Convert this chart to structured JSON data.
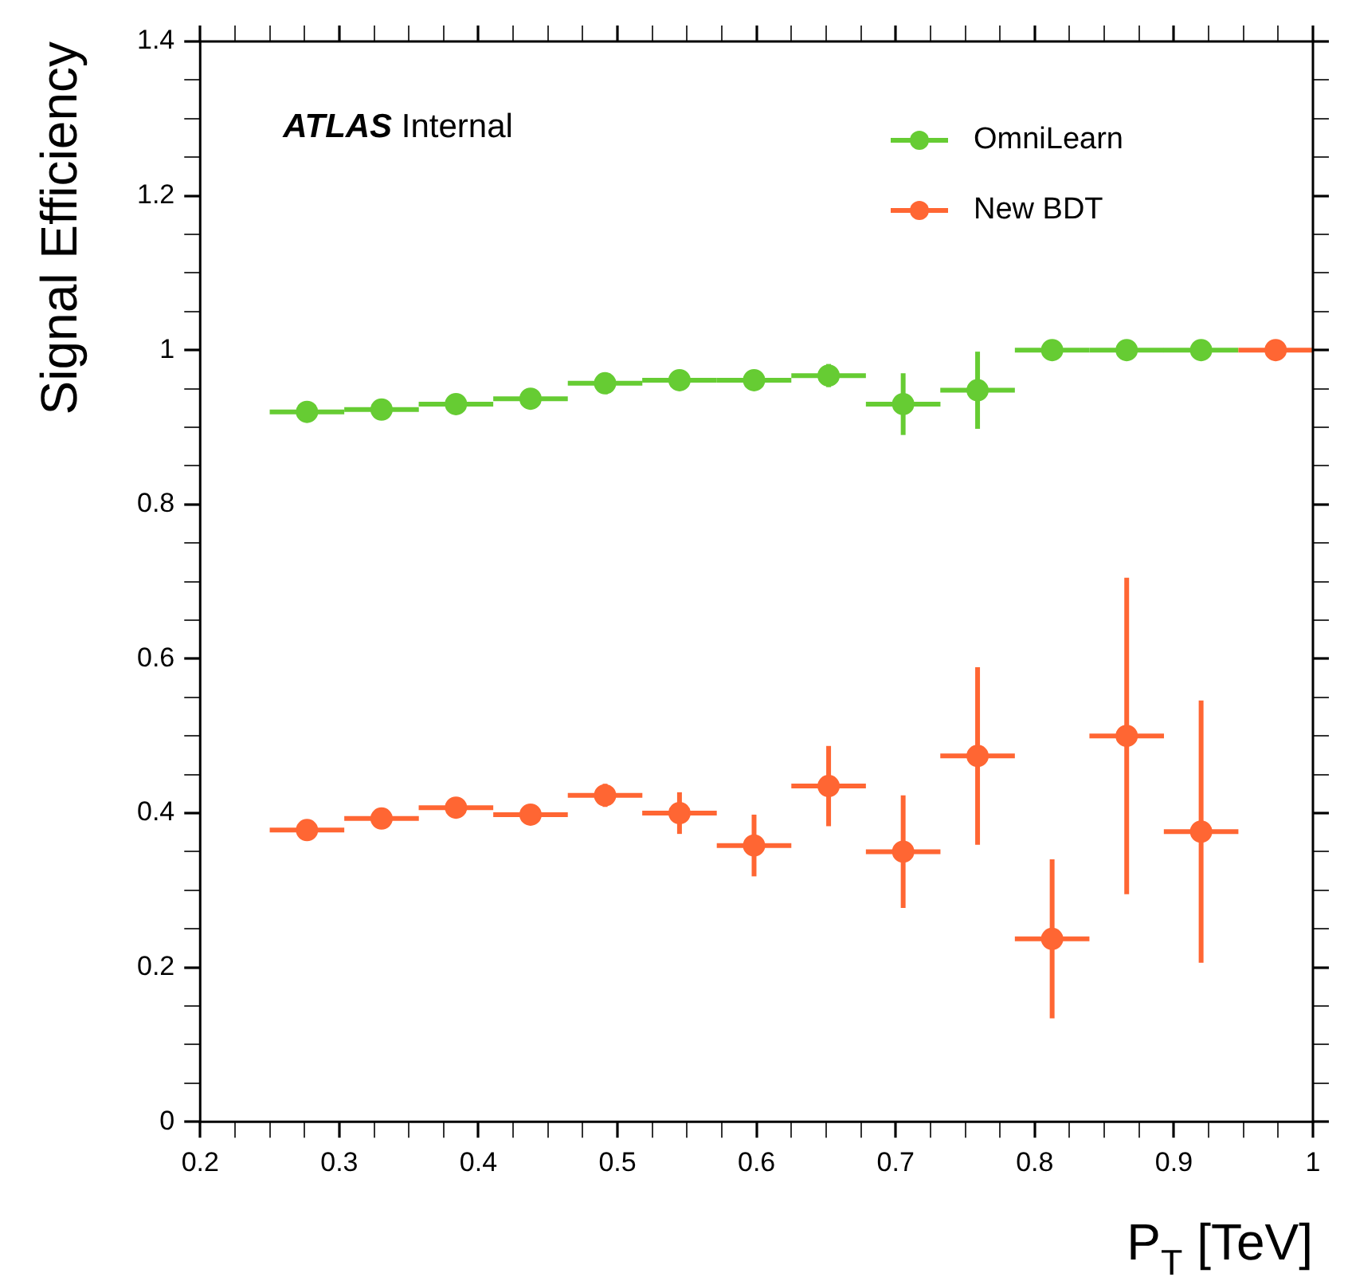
{
  "chart_data": {
    "type": "scatter",
    "xlabel": "P$_{T}$ [TeV]",
    "ylabel": "Signal Efficiency",
    "annotations": [
      "ATLAS Internal"
    ],
    "x": [
      0.2768,
      0.3304,
      0.3839,
      0.4375,
      0.4911,
      0.5446,
      0.5982,
      0.6518,
      0.7054,
      0.7589,
      0.8125,
      0.8661,
      0.9196,
      0.9732
    ],
    "series": [
      {
        "name": "OmniLearn",
        "color": "#66cc33",
        "values": [
          0.92,
          0.923,
          0.93,
          0.937,
          0.957,
          0.961,
          0.961,
          0.967,
          0.93,
          0.948,
          1.0,
          1.0,
          1.0,
          null
        ],
        "errors": [
          null,
          null,
          null,
          null,
          null,
          null,
          0.01,
          0.015,
          0.04,
          0.05,
          null,
          null,
          null,
          null
        ],
        "xerrors": [
          0.0268,
          0.0268,
          0.0268,
          0.0268,
          0.0268,
          0.0268,
          0.0268,
          0.0268,
          0.0268,
          0.0268,
          0.0268,
          0.0268,
          0.0268,
          null
        ]
      },
      {
        "name": "New BDT",
        "color": "#ff6633",
        "values": [
          0.378,
          0.393,
          0.407,
          0.398,
          0.423,
          0.4,
          0.358,
          0.435,
          0.35,
          0.474,
          0.237,
          0.5,
          0.376,
          1.0
        ],
        "errors": [
          null,
          null,
          null,
          null,
          0.015,
          0.027,
          0.04,
          0.052,
          0.073,
          0.115,
          0.103,
          0.205,
          0.17,
          null
        ],
        "xerrors": [
          0.0268,
          0.0268,
          0.0268,
          0.0268,
          0.0268,
          0.0268,
          0.0268,
          0.0268,
          0.0268,
          0.0268,
          0.0268,
          0.0268,
          0.0268,
          0.0268
        ]
      }
    ],
    "xlim": [
      0.2,
      1.0
    ],
    "xticks": [
      0.2,
      {
        "value": 0.225,
        "label": null
      },
      {
        "value": 0.25,
        "label": null
      },
      {
        "value": 0.275,
        "label": null
      },
      0.3,
      {
        "value": 0.325,
        "label": null
      },
      {
        "value": 0.35,
        "label": null
      },
      {
        "value": 0.375,
        "label": null
      },
      0.4,
      {
        "value": 0.425,
        "label": null
      },
      {
        "value": 0.45,
        "label": null
      },
      {
        "value": 0.475,
        "label": null
      },
      0.5,
      {
        "value": 0.525,
        "label": null
      },
      {
        "value": 0.55,
        "label": null
      },
      {
        "value": 0.575,
        "label": null
      },
      0.6,
      {
        "value": 0.625,
        "label": null
      },
      {
        "value": 0.65,
        "label": null
      },
      {
        "value": 0.675,
        "label": null
      },
      0.7,
      {
        "value": 0.725,
        "label": null
      },
      {
        "value": 0.75,
        "label": null
      },
      {
        "value": 0.775,
        "label": null
      },
      0.8,
      {
        "value": 0.825,
        "label": null
      },
      {
        "value": 0.85,
        "label": null
      },
      {
        "value": 0.875,
        "label": null
      },
      0.9,
      {
        "value": 0.925,
        "label": null
      },
      {
        "value": 0.95,
        "label": null
      },
      {
        "value": 0.975,
        "label": null
      },
      1
    ],
    "ylim": [
      0,
      1.4
    ],
    "yticks": [
      0,
      {
        "value": 0.05,
        "label": null
      },
      {
        "value": 0.1,
        "label": null
      },
      {
        "value": 0.15,
        "label": null
      },
      0.2,
      {
        "value": 0.25,
        "label": null
      },
      {
        "value": 0.3,
        "label": null
      },
      {
        "value": 0.35,
        "label": null
      },
      0.4,
      {
        "value": 0.45,
        "label": null
      },
      {
        "value": 0.5,
        "label": null
      },
      {
        "value": 0.55,
        "label": null
      },
      0.6,
      {
        "value": 0.65,
        "label": null
      },
      {
        "value": 0.7,
        "label": null
      },
      {
        "value": 0.75,
        "label": null
      },
      0.8,
      {
        "value": 0.85,
        "label": null
      },
      {
        "value": 0.9,
        "label": null
      },
      {
        "value": 0.95,
        "label": null
      },
      1,
      {
        "value": 1.05,
        "label": null
      },
      {
        "value": 1.1,
        "label": null
      },
      {
        "value": 1.15,
        "label": null
      },
      1.2,
      {
        "value": 1.25,
        "label": null
      },
      {
        "value": 1.3,
        "label": null
      },
      {
        "value": 1.35,
        "label": null
      },
      1.4
    ],
    "grid": false,
    "legend": "top right",
    "marker": "circle"
  }
}
